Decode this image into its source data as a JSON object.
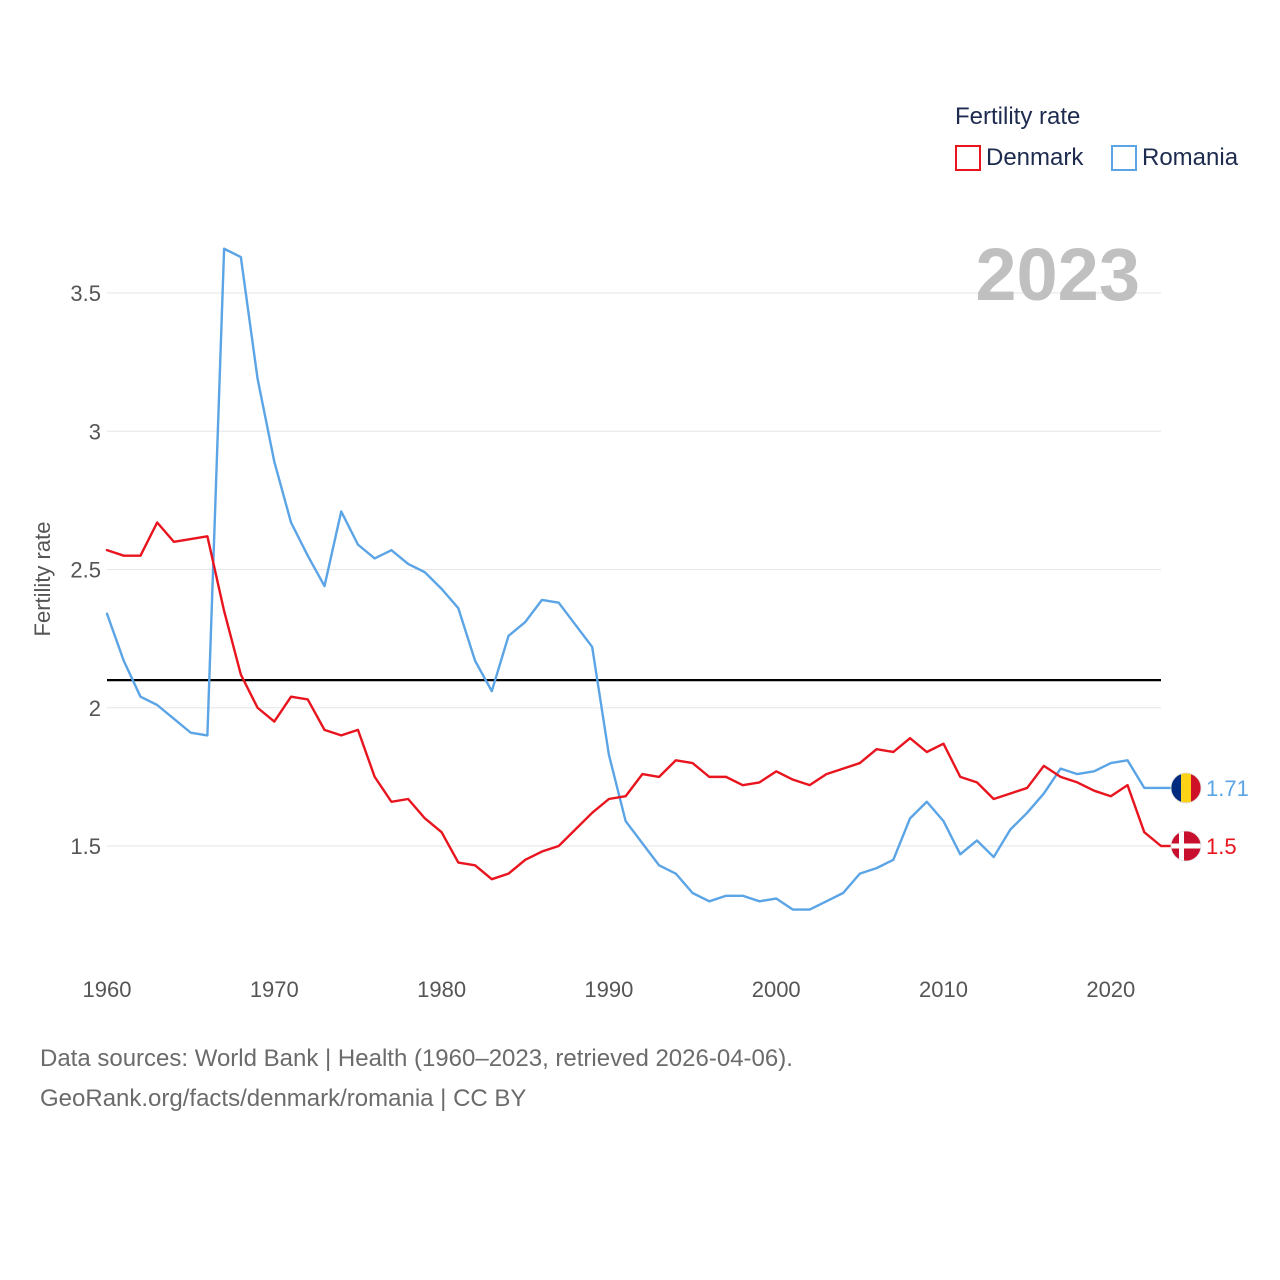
{
  "chart_data": {
    "type": "line",
    "current_year_label": "2023",
    "ylabel": "Fertility rate",
    "xlim": [
      1960,
      2023
    ],
    "ylim": [
      1.1,
      3.75
    ],
    "x_ticks": [
      1960,
      1970,
      1980,
      1990,
      2000,
      2010,
      2020
    ],
    "y_ticks": [
      1.5,
      2,
      2.5,
      3,
      3.5
    ],
    "y_tick_labels": [
      "1.5",
      "2",
      "2.5",
      "3",
      "3.5"
    ],
    "reference_line": {
      "value": 2.1,
      "color": "#000000"
    },
    "legend": {
      "title": "Fertility rate",
      "placement": "top-right"
    },
    "x": [
      1960,
      1961,
      1962,
      1963,
      1964,
      1965,
      1966,
      1967,
      1968,
      1969,
      1970,
      1971,
      1972,
      1973,
      1974,
      1975,
      1976,
      1977,
      1978,
      1979,
      1980,
      1981,
      1982,
      1983,
      1984,
      1985,
      1986,
      1987,
      1988,
      1989,
      1990,
      1991,
      1992,
      1993,
      1994,
      1995,
      1996,
      1997,
      1998,
      1999,
      2000,
      2001,
      2002,
      2003,
      2004,
      2005,
      2006,
      2007,
      2008,
      2009,
      2010,
      2011,
      2012,
      2013,
      2014,
      2015,
      2016,
      2017,
      2018,
      2019,
      2020,
      2021,
      2022,
      2023
    ],
    "series": [
      {
        "name": "Denmark",
        "color": "#e8141e",
        "end_label": "1.5",
        "flag": "denmark-flag-icon",
        "values": [
          2.57,
          2.55,
          2.55,
          2.67,
          2.6,
          2.61,
          2.62,
          2.35,
          2.12,
          2.0,
          1.95,
          2.04,
          2.03,
          1.92,
          1.9,
          1.92,
          1.75,
          1.66,
          1.67,
          1.6,
          1.55,
          1.44,
          1.43,
          1.38,
          1.4,
          1.45,
          1.48,
          1.5,
          1.56,
          1.62,
          1.67,
          1.68,
          1.76,
          1.75,
          1.81,
          1.8,
          1.75,
          1.75,
          1.72,
          1.73,
          1.77,
          1.74,
          1.72,
          1.76,
          1.78,
          1.8,
          1.85,
          1.84,
          1.89,
          1.84,
          1.87,
          1.75,
          1.73,
          1.67,
          1.69,
          1.71,
          1.79,
          1.75,
          1.73,
          1.7,
          1.68,
          1.72,
          1.55,
          1.5
        ]
      },
      {
        "name": "Romania",
        "color": "#5ba4e5",
        "end_label": "1.71",
        "flag": "romania-flag-icon",
        "values": [
          2.34,
          2.17,
          2.04,
          2.01,
          1.96,
          1.91,
          1.9,
          3.66,
          3.63,
          3.19,
          2.89,
          2.67,
          2.55,
          2.44,
          2.71,
          2.59,
          2.54,
          2.57,
          2.52,
          2.49,
          2.43,
          2.36,
          2.17,
          2.06,
          2.26,
          2.31,
          2.39,
          2.38,
          2.3,
          2.22,
          1.83,
          1.59,
          1.51,
          1.43,
          1.4,
          1.33,
          1.3,
          1.32,
          1.32,
          1.3,
          1.31,
          1.27,
          1.27,
          1.3,
          1.33,
          1.4,
          1.42,
          1.45,
          1.6,
          1.66,
          1.59,
          1.47,
          1.52,
          1.46,
          1.56,
          1.62,
          1.69,
          1.78,
          1.76,
          1.77,
          1.8,
          1.81,
          1.71,
          1.71
        ]
      }
    ]
  },
  "footer": {
    "line1": "Data sources: World Bank | Health (1960–2023, retrieved 2026-04-06).",
    "line2": "GeoRank.org/facts/denmark/romania | CC BY"
  }
}
